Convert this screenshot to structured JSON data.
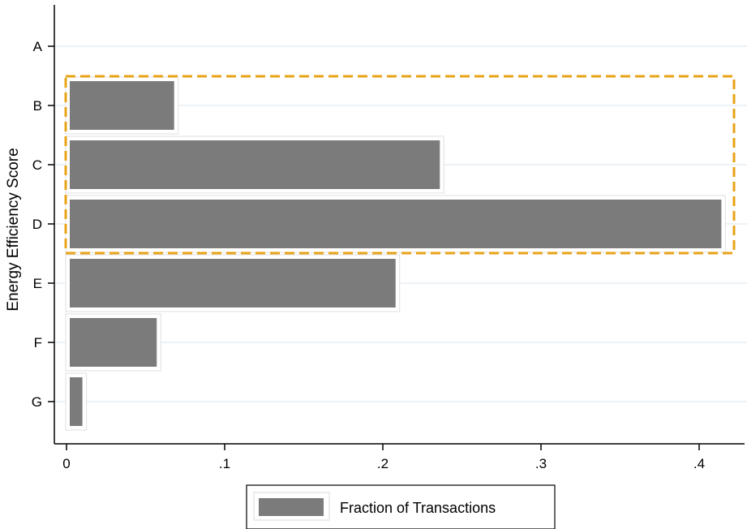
{
  "chart_data": {
    "type": "bar",
    "orientation": "horizontal",
    "categories": [
      "A",
      "B",
      "C",
      "D",
      "E",
      "F",
      "G"
    ],
    "values": [
      0,
      0.066,
      0.234,
      0.412,
      0.206,
      0.055,
      0.008
    ],
    "ylabel": "Energy Efficiency Score",
    "xlabel": "",
    "x_ticks": [
      "0",
      ".1",
      ".2",
      ".3",
      ".4"
    ],
    "x_tick_values": [
      0,
      0.1,
      0.2,
      0.3,
      0.4
    ],
    "xlim": [
      0,
      0.42
    ],
    "grid": true,
    "legend": {
      "position": "bottom-center",
      "entries": [
        "Fraction of Transactions"
      ]
    },
    "highlight": {
      "categories": [
        "B",
        "C",
        "D"
      ],
      "style": "dashed",
      "color": "#E8A317"
    },
    "colors": {
      "bar": "#7b7b7b",
      "grid": "#e7eef3",
      "axis": "#000000",
      "highlight": "#E8A317"
    }
  }
}
